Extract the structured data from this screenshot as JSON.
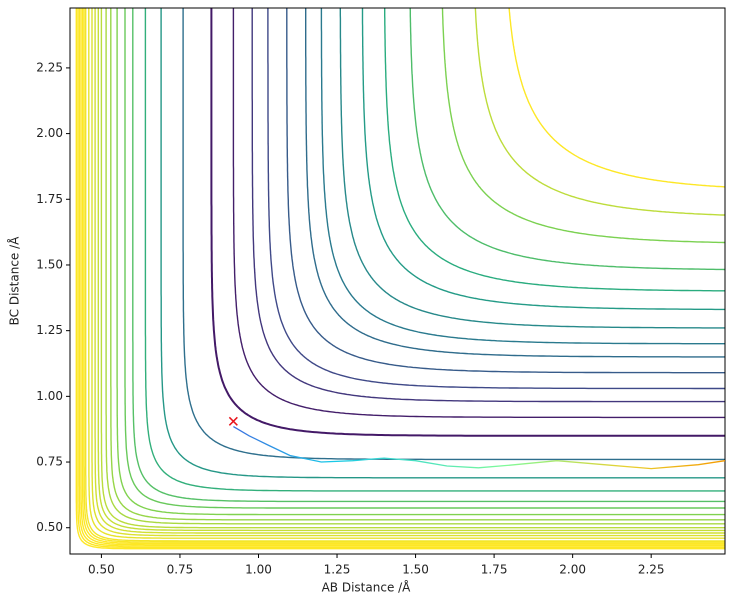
{
  "chart_data": {
    "type": "contour",
    "xlabel": "AB Distance /Å",
    "ylabel": "BC Distance /Å",
    "xlim": [
      0.4,
      2.485
    ],
    "ylim": [
      0.4,
      2.478
    ],
    "xticks": [
      {
        "value": 0.5,
        "label": "0.50"
      },
      {
        "value": 0.75,
        "label": "0.75"
      },
      {
        "value": 1.0,
        "label": "1.00"
      },
      {
        "value": 1.25,
        "label": "1.25"
      },
      {
        "value": 1.5,
        "label": "1.50"
      },
      {
        "value": 1.75,
        "label": "1.75"
      },
      {
        "value": 2.0,
        "label": "2.00"
      },
      {
        "value": 2.25,
        "label": "2.25"
      }
    ],
    "yticks": [
      {
        "value": 0.5,
        "label": "0.50"
      },
      {
        "value": 0.75,
        "label": "0.75"
      },
      {
        "value": 1.0,
        "label": "1.00"
      },
      {
        "value": 1.25,
        "label": "1.25"
      },
      {
        "value": 1.5,
        "label": "1.50"
      },
      {
        "value": 1.75,
        "label": "1.75"
      },
      {
        "value": 2.0,
        "label": "2.00"
      },
      {
        "value": 2.25,
        "label": "2.25"
      }
    ],
    "colormap": "viridis",
    "trajectory": {
      "x": [
        0.92,
        0.97,
        1.03,
        1.1,
        1.2,
        1.3,
        1.4,
        1.5,
        1.6,
        1.7,
        1.8,
        1.95,
        2.1,
        2.25,
        2.4,
        2.485
      ],
      "y": [
        0.885,
        0.85,
        0.815,
        0.775,
        0.75,
        0.755,
        0.765,
        0.755,
        0.735,
        0.728,
        0.738,
        0.755,
        0.74,
        0.725,
        0.74,
        0.755
      ]
    },
    "start": {
      "x": 0.92,
      "y": 0.905,
      "color": "#e8141c"
    }
  }
}
